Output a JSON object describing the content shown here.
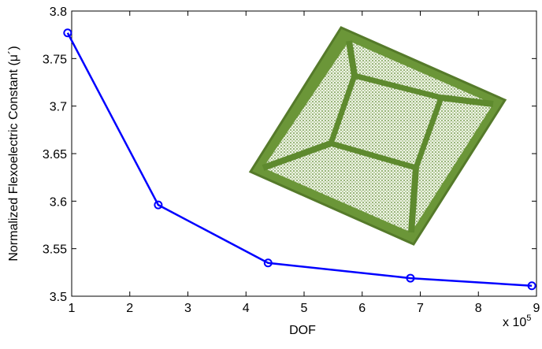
{
  "chart_data": {
    "type": "line",
    "ylabel": "Normalized Flexoelectric Constant (μ´)",
    "xlabel": "DOF",
    "x_multiplier": {
      "base": "x 10",
      "exponent": "5"
    },
    "x": [
      0.93,
      2.49,
      4.38,
      6.83,
      8.92
    ],
    "series": [
      {
        "color": "#0000ff",
        "values": [
          3.777,
          3.596,
          3.535,
          3.519,
          3.511
        ]
      }
    ],
    "xlim": [
      1,
      9
    ],
    "xticks": [
      1,
      2,
      3,
      4,
      5,
      6,
      7,
      8,
      9
    ],
    "ylim": [
      3.5,
      3.8
    ],
    "yticks": [
      3.5,
      3.55,
      3.6,
      3.65,
      3.7,
      3.75,
      3.8
    ],
    "grid": false
  }
}
